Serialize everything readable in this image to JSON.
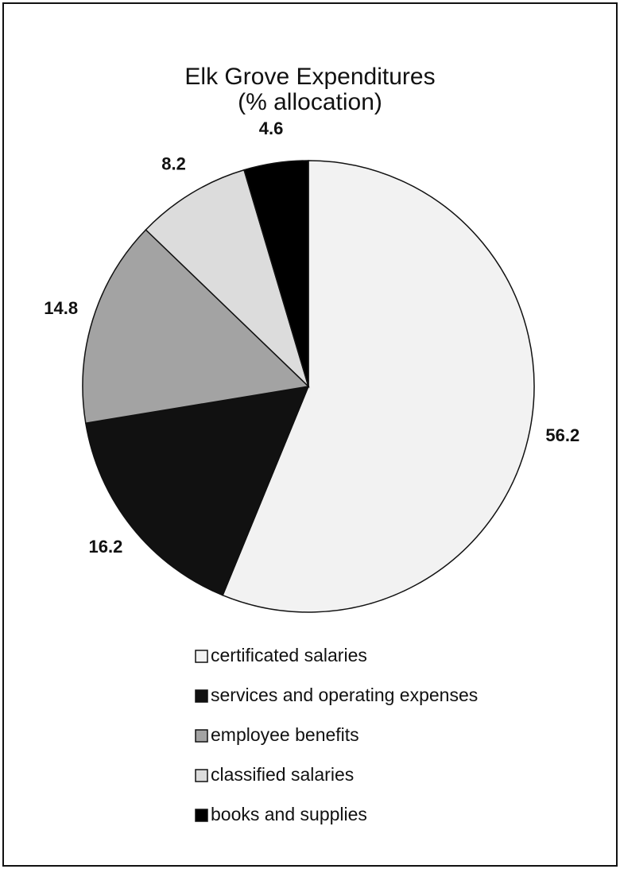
{
  "chart_data": {
    "type": "pie",
    "title": "Elk Grove Expenditures",
    "subtitle": "(% allocation)",
    "categories": [
      "certificated salaries",
      "services and operating expenses",
      "employee benefits",
      "classified salaries",
      "books and supplies"
    ],
    "values": [
      56.2,
      16.2,
      14.8,
      8.2,
      4.6
    ],
    "colors": [
      "#f2f2f2",
      "#111111",
      "#a3a3a3",
      "#dcdcdc",
      "#000000"
    ],
    "legend": "bottom"
  }
}
